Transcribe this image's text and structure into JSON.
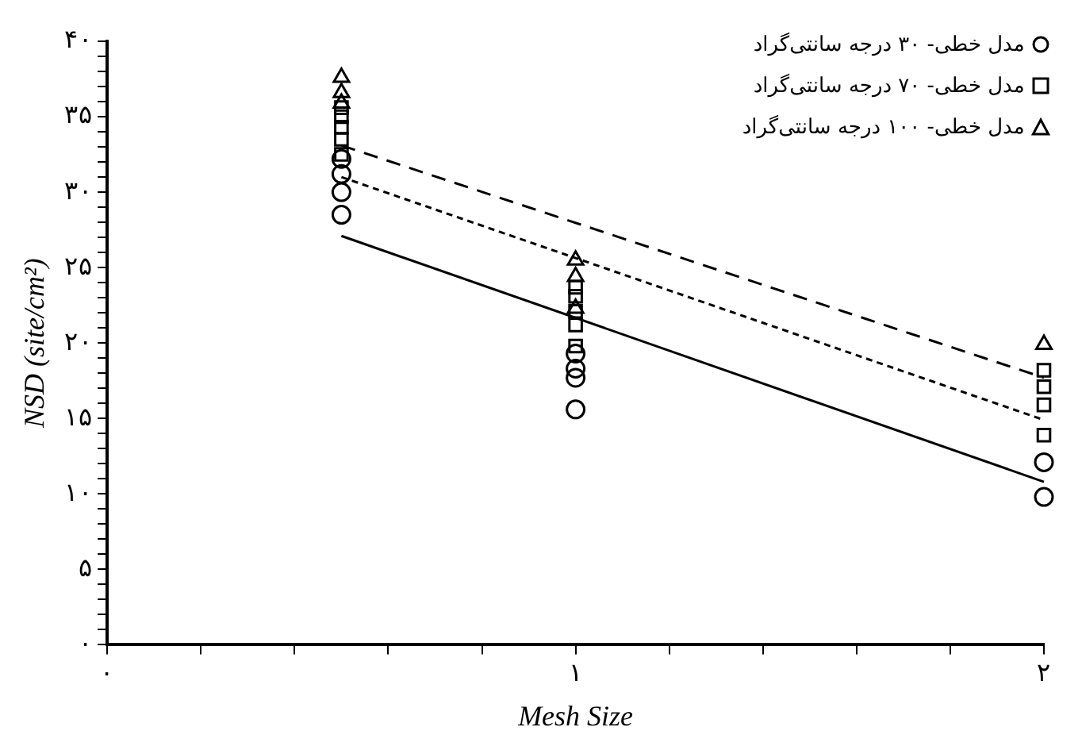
{
  "chart_data": {
    "type": "scatter",
    "xlabel": "Mesh Size",
    "ylabel": "NSD (site/cm²)",
    "legend": "top right",
    "grid": false,
    "xlim": [
      0,
      2
    ],
    "xticks": [
      {
        "value": 0,
        "label": "۰"
      },
      {
        "value": 0.2,
        "label": null
      },
      {
        "value": 0.4,
        "label": null
      },
      {
        "value": 0.6,
        "label": null
      },
      {
        "value": 0.8,
        "label": null
      },
      {
        "value": 1,
        "label": "۱"
      },
      {
        "value": 1.2,
        "label": null
      },
      {
        "value": 1.4,
        "label": null
      },
      {
        "value": 1.6,
        "label": null
      },
      {
        "value": 1.8,
        "label": null
      },
      {
        "value": 2,
        "label": "۲"
      }
    ],
    "ylim": [
      0,
      40
    ],
    "yticks": [
      {
        "value": 0,
        "label": "۰"
      },
      {
        "value": 1,
        "label": null
      },
      {
        "value": 2,
        "label": null
      },
      {
        "value": 3,
        "label": null
      },
      {
        "value": 4,
        "label": null
      },
      {
        "value": 5,
        "label": "۵"
      },
      {
        "value": 6,
        "label": null
      },
      {
        "value": 7,
        "label": null
      },
      {
        "value": 8,
        "label": null
      },
      {
        "value": 9,
        "label": null
      },
      {
        "value": 10,
        "label": "۱۰"
      },
      {
        "value": 11,
        "label": null
      },
      {
        "value": 12,
        "label": null
      },
      {
        "value": 13,
        "label": null
      },
      {
        "value": 14,
        "label": null
      },
      {
        "value": 15,
        "label": "۱۵"
      },
      {
        "value": 16,
        "label": null
      },
      {
        "value": 17,
        "label": null
      },
      {
        "value": 18,
        "label": null
      },
      {
        "value": 19,
        "label": null
      },
      {
        "value": 20,
        "label": "۲۰"
      },
      {
        "value": 21,
        "label": null
      },
      {
        "value": 22,
        "label": null
      },
      {
        "value": 23,
        "label": null
      },
      {
        "value": 24,
        "label": null
      },
      {
        "value": 25,
        "label": "۲۵"
      },
      {
        "value": 26,
        "label": null
      },
      {
        "value": 27,
        "label": null
      },
      {
        "value": 28,
        "label": null
      },
      {
        "value": 29,
        "label": null
      },
      {
        "value": 30,
        "label": "۳۰"
      },
      {
        "value": 31,
        "label": null
      },
      {
        "value": 32,
        "label": null
      },
      {
        "value": 33,
        "label": null
      },
      {
        "value": 34,
        "label": null
      },
      {
        "value": 35,
        "label": "۳۵"
      },
      {
        "value": 36,
        "label": null
      },
      {
        "value": 37,
        "label": null
      },
      {
        "value": 38,
        "label": null
      },
      {
        "value": 39,
        "label": null
      },
      {
        "value": 40,
        "label": "۴۰"
      }
    ],
    "series": [
      {
        "name": "مدل خطی- ۳۰ درجه سانتی‌گراد",
        "type": "scatter",
        "marker": "circle",
        "color": "#000000",
        "x": [
          0.5,
          0.5,
          0.5,
          0.5,
          1,
          1,
          1,
          1,
          2,
          2
        ],
        "values": [
          28.5,
          30,
          31.2,
          32.2,
          15.6,
          17.7,
          18.3,
          19.3,
          9.8,
          12.1
        ]
      },
      {
        "name": "مدل خطی- ۷۰ درجه سانتی‌گراد",
        "type": "scatter",
        "marker": "square",
        "color": "#000000",
        "x": [
          0.5,
          0.5,
          0.5,
          0.5,
          0.5,
          1,
          1,
          1,
          1,
          1,
          2,
          2,
          2,
          2
        ],
        "values": [
          32.5,
          33.5,
          34.3,
          35,
          35.6,
          19.8,
          21.2,
          22.1,
          23.1,
          23.7,
          13.9,
          15.9,
          17.1,
          18.2
        ]
      },
      {
        "name": "مدل خطی- ۱۰۰ درجه سانتی‌گراد",
        "type": "scatter",
        "marker": "triangle",
        "color": "#000000",
        "x": [
          0.5,
          0.5,
          0.5,
          1,
          1,
          1,
          2
        ],
        "values": [
          35.9,
          36.6,
          37.6,
          22.3,
          24.4,
          25.5,
          19.9
        ]
      },
      {
        "type": "line",
        "line_style": "solid",
        "marker": "none",
        "color": "#000000",
        "x": [
          0.5,
          2
        ],
        "values": [
          27.1,
          10.8
        ]
      },
      {
        "type": "line",
        "line_style": "dotted",
        "marker": "none",
        "color": "#000000",
        "x": [
          0.5,
          2
        ],
        "values": [
          31,
          14.9
        ]
      },
      {
        "type": "line",
        "line_style": "dashed",
        "marker": "none",
        "color": "#000000",
        "x": [
          0.5,
          2
        ],
        "values": [
          33.1,
          17.7
        ]
      }
    ]
  }
}
